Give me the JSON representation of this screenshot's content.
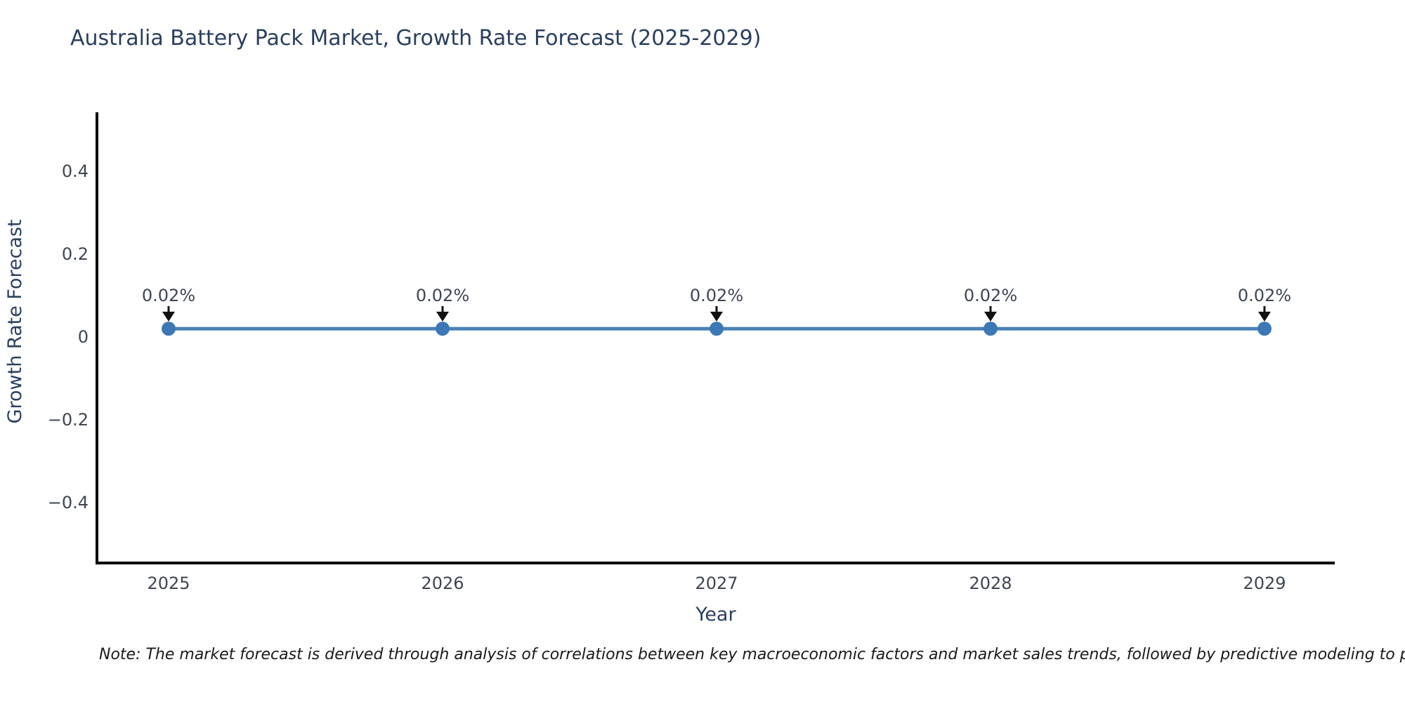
{
  "chart_data": {
    "type": "line",
    "title": "Australia Battery Pack Market, Growth Rate Forecast (2025-2029)",
    "xlabel": "Year",
    "ylabel": "Growth Rate Forecast",
    "categories": [
      "2025",
      "2026",
      "2027",
      "2028",
      "2029"
    ],
    "series": [
      {
        "name": "Growth Rate Forecast",
        "values": [
          0.02,
          0.02,
          0.02,
          0.02,
          0.02
        ],
        "point_labels": [
          "0.02%",
          "0.02%",
          "0.02%",
          "0.02%",
          "0.02%"
        ]
      }
    ],
    "yticks": [
      0.4,
      0.2,
      0,
      -0.2,
      -0.4
    ],
    "ytick_labels": [
      "0.4",
      "0.2",
      "0",
      "−0.2",
      "−0.4"
    ],
    "ylim": [
      -0.55,
      0.54
    ],
    "grid": false,
    "legend_position": "none",
    "annotations_have_arrows": true,
    "colors": {
      "line": "#4a81b8",
      "marker": "#3b78b5",
      "arrow": "#111111",
      "spine": "#000000",
      "title": "#2a3f5f",
      "tick_label": "#3f4650",
      "background": "#ffffff"
    },
    "note": "Note: The market forecast is derived through analysis of correlations between key macroeconomic factors and market sales trends, followed by predictive modeling to project future sa"
  }
}
